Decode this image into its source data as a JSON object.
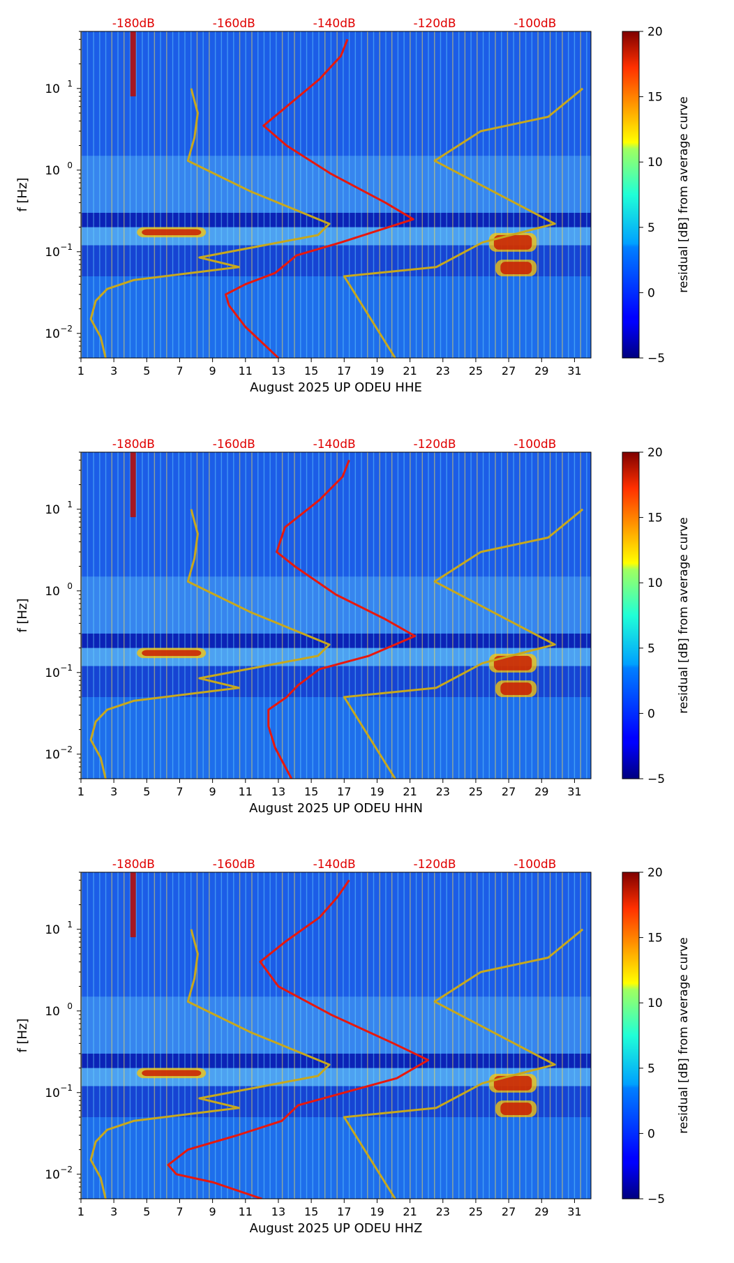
{
  "chart_data": [
    {
      "type": "heatmap",
      "component": "HHE",
      "xlabel": "August 2025 UP ODEU  HHE",
      "ylabel": "f [Hz]",
      "xlim": [
        1,
        32
      ],
      "ylim": [
        0.005,
        50
      ],
      "x_ticks": [
        "1",
        "3",
        "5",
        "7",
        "9",
        "11",
        "13",
        "15",
        "17",
        "19",
        "21",
        "23",
        "25",
        "27",
        "29",
        "31"
      ],
      "y_ticks": [
        {
          "v": 0.01,
          "label": "10",
          "sup": "−2"
        },
        {
          "v": 0.1,
          "label": "10",
          "sup": "−1"
        },
        {
          "v": 1,
          "label": "10",
          "sup": "0"
        },
        {
          "v": 10,
          "label": "10",
          "sup": "1"
        }
      ],
      "top_labels": [
        {
          "x": 4.2,
          "label": "-180dB"
        },
        {
          "x": 10.3,
          "label": "-160dB"
        },
        {
          "x": 16.4,
          "label": "-140dB"
        },
        {
          "x": 22.5,
          "label": "-120dB"
        },
        {
          "x": 28.6,
          "label": "-100dB"
        }
      ],
      "colorbar": {
        "label": "residual [dB] from average curve",
        "min": -5,
        "max": 20,
        "ticks": [
          "20",
          "15",
          "10",
          "5",
          "0",
          "−5"
        ]
      },
      "curves": [
        {
          "name": "mean PSD (red)",
          "color": "#e8180c",
          "points": [
            [
              13,
              0.005
            ],
            [
              11,
              0.012
            ],
            [
              10,
              0.022
            ],
            [
              9.8,
              0.03
            ],
            [
              11,
              0.04
            ],
            [
              12.8,
              0.055
            ],
            [
              14.1,
              0.09
            ],
            [
              16.8,
              0.13
            ],
            [
              21.2,
              0.25
            ],
            [
              19.5,
              0.4
            ],
            [
              16.2,
              0.9
            ],
            [
              13.5,
              2
            ],
            [
              12.1,
              3.5
            ],
            [
              13.5,
              6
            ],
            [
              15.5,
              13
            ],
            [
              16.8,
              25
            ],
            [
              17.2,
              40
            ]
          ]
        },
        {
          "name": "noise model (gold)",
          "color": "#c8a81c",
          "points": [
            [
              2.5,
              0.005
            ],
            [
              2.2,
              0.009
            ],
            [
              1.6,
              0.015
            ],
            [
              1.9,
              0.025
            ],
            [
              2.6,
              0.035
            ],
            [
              4.2,
              0.045
            ],
            [
              10.6,
              0.065
            ],
            [
              8.2,
              0.085
            ],
            [
              15.4,
              0.16
            ],
            [
              16.1,
              0.22
            ],
            [
              11.3,
              0.55
            ],
            [
              7.5,
              1.3
            ],
            [
              7.9,
              2.5
            ],
            [
              8.1,
              5
            ],
            [
              7.7,
              10
            ]
          ],
          "points2": [
            [
              20.1,
              0.005
            ],
            [
              17.0,
              0.05
            ],
            [
              22.6,
              0.065
            ],
            [
              25.4,
              0.13
            ],
            [
              29.8,
              0.22
            ],
            [
              22.5,
              1.3
            ],
            [
              25.3,
              3
            ],
            [
              29.4,
              4.5
            ],
            [
              31.5,
              10
            ]
          ]
        }
      ]
    },
    {
      "type": "heatmap",
      "component": "HHN",
      "xlabel": "August 2025 UP ODEU  HHN",
      "ylabel": "f [Hz]",
      "xlim": [
        1,
        32
      ],
      "ylim": [
        0.005,
        50
      ],
      "x_ticks": [
        "1",
        "3",
        "5",
        "7",
        "9",
        "11",
        "13",
        "15",
        "17",
        "19",
        "21",
        "23",
        "25",
        "27",
        "29",
        "31"
      ],
      "y_ticks": [
        {
          "v": 0.01,
          "label": "10",
          "sup": "−2"
        },
        {
          "v": 0.1,
          "label": "10",
          "sup": "−1"
        },
        {
          "v": 1,
          "label": "10",
          "sup": "0"
        },
        {
          "v": 10,
          "label": "10",
          "sup": "1"
        }
      ],
      "top_labels": [
        {
          "x": 4.2,
          "label": "-180dB"
        },
        {
          "x": 10.3,
          "label": "-160dB"
        },
        {
          "x": 16.4,
          "label": "-140dB"
        },
        {
          "x": 22.5,
          "label": "-120dB"
        },
        {
          "x": 28.6,
          "label": "-100dB"
        }
      ],
      "colorbar": {
        "label": "residual [dB] from average curve",
        "min": -5,
        "max": 20,
        "ticks": [
          "20",
          "15",
          "10",
          "5",
          "0",
          "−5"
        ]
      },
      "curves": [
        {
          "name": "mean PSD (red)",
          "color": "#e8180c",
          "points": [
            [
              13.8,
              0.005
            ],
            [
              12.8,
              0.012
            ],
            [
              12.4,
              0.022
            ],
            [
              12.4,
              0.035
            ],
            [
              13.5,
              0.05
            ],
            [
              14.2,
              0.07
            ],
            [
              15.5,
              0.11
            ],
            [
              18.5,
              0.16
            ],
            [
              21.3,
              0.28
            ],
            [
              19.5,
              0.45
            ],
            [
              16.5,
              0.9
            ],
            [
              14,
              2
            ],
            [
              12.9,
              3
            ],
            [
              13.4,
              6
            ],
            [
              15.5,
              13
            ],
            [
              16.9,
              25
            ],
            [
              17.3,
              40
            ]
          ]
        },
        {
          "name": "noise model (gold)",
          "color": "#c8a81c",
          "points": [
            [
              2.5,
              0.005
            ],
            [
              2.2,
              0.009
            ],
            [
              1.6,
              0.015
            ],
            [
              1.9,
              0.025
            ],
            [
              2.6,
              0.035
            ],
            [
              4.2,
              0.045
            ],
            [
              10.6,
              0.065
            ],
            [
              8.2,
              0.085
            ],
            [
              15.4,
              0.16
            ],
            [
              16.1,
              0.22
            ],
            [
              11.3,
              0.55
            ],
            [
              7.5,
              1.3
            ],
            [
              7.9,
              2.5
            ],
            [
              8.1,
              5
            ],
            [
              7.7,
              10
            ]
          ],
          "points2": [
            [
              20.1,
              0.005
            ],
            [
              17.0,
              0.05
            ],
            [
              22.6,
              0.065
            ],
            [
              25.4,
              0.13
            ],
            [
              29.8,
              0.22
            ],
            [
              22.5,
              1.3
            ],
            [
              25.3,
              3
            ],
            [
              29.4,
              4.5
            ],
            [
              31.5,
              10
            ]
          ]
        }
      ]
    },
    {
      "type": "heatmap",
      "component": "HHZ",
      "xlabel": "August 2025 UP ODEU  HHZ",
      "ylabel": "f [Hz]",
      "xlim": [
        1,
        32
      ],
      "ylim": [
        0.005,
        50
      ],
      "x_ticks": [
        "1",
        "3",
        "5",
        "7",
        "9",
        "11",
        "13",
        "15",
        "17",
        "19",
        "21",
        "23",
        "25",
        "27",
        "29",
        "31"
      ],
      "y_ticks": [
        {
          "v": 0.01,
          "label": "10",
          "sup": "−2"
        },
        {
          "v": 0.1,
          "label": "10",
          "sup": "−1"
        },
        {
          "v": 1,
          "label": "10",
          "sup": "0"
        },
        {
          "v": 10,
          "label": "10",
          "sup": "1"
        }
      ],
      "top_labels": [
        {
          "x": 4.2,
          "label": "-180dB"
        },
        {
          "x": 10.3,
          "label": "-160dB"
        },
        {
          "x": 16.4,
          "label": "-140dB"
        },
        {
          "x": 22.5,
          "label": "-120dB"
        },
        {
          "x": 28.6,
          "label": "-100dB"
        }
      ],
      "colorbar": {
        "label": "residual [dB] from average curve",
        "min": -5,
        "max": 20,
        "ticks": [
          "20",
          "15",
          "10",
          "5",
          "0",
          "−5"
        ]
      },
      "curves": [
        {
          "name": "mean PSD (red)",
          "color": "#e8180c",
          "points": [
            [
              12,
              0.005
            ],
            [
              9,
              0.008
            ],
            [
              6.8,
              0.01
            ],
            [
              6.3,
              0.013
            ],
            [
              7.5,
              0.02
            ],
            [
              10.5,
              0.03
            ],
            [
              13.2,
              0.045
            ],
            [
              14.2,
              0.07
            ],
            [
              17,
              0.1
            ],
            [
              20.2,
              0.15
            ],
            [
              22.1,
              0.25
            ],
            [
              20,
              0.4
            ],
            [
              16.2,
              0.9
            ],
            [
              13,
              2
            ],
            [
              11.9,
              4
            ],
            [
              13.4,
              7
            ],
            [
              15.5,
              14
            ],
            [
              16.6,
              25
            ],
            [
              17.3,
              40
            ]
          ]
        },
        {
          "name": "noise model (gold)",
          "color": "#c8a81c",
          "points": [
            [
              2.5,
              0.005
            ],
            [
              2.2,
              0.009
            ],
            [
              1.6,
              0.015
            ],
            [
              1.9,
              0.025
            ],
            [
              2.6,
              0.035
            ],
            [
              4.2,
              0.045
            ],
            [
              10.6,
              0.065
            ],
            [
              8.2,
              0.085
            ],
            [
              15.4,
              0.16
            ],
            [
              16.1,
              0.22
            ],
            [
              11.3,
              0.55
            ],
            [
              7.5,
              1.3
            ],
            [
              7.9,
              2.5
            ],
            [
              8.1,
              5
            ],
            [
              7.7,
              10
            ]
          ],
          "points2": [
            [
              20.1,
              0.005
            ],
            [
              17.0,
              0.05
            ],
            [
              22.6,
              0.065
            ],
            [
              25.4,
              0.13
            ],
            [
              29.8,
              0.22
            ],
            [
              22.5,
              1.3
            ],
            [
              25.3,
              3
            ],
            [
              29.4,
              4.5
            ],
            [
              31.5,
              10
            ]
          ]
        }
      ]
    }
  ]
}
